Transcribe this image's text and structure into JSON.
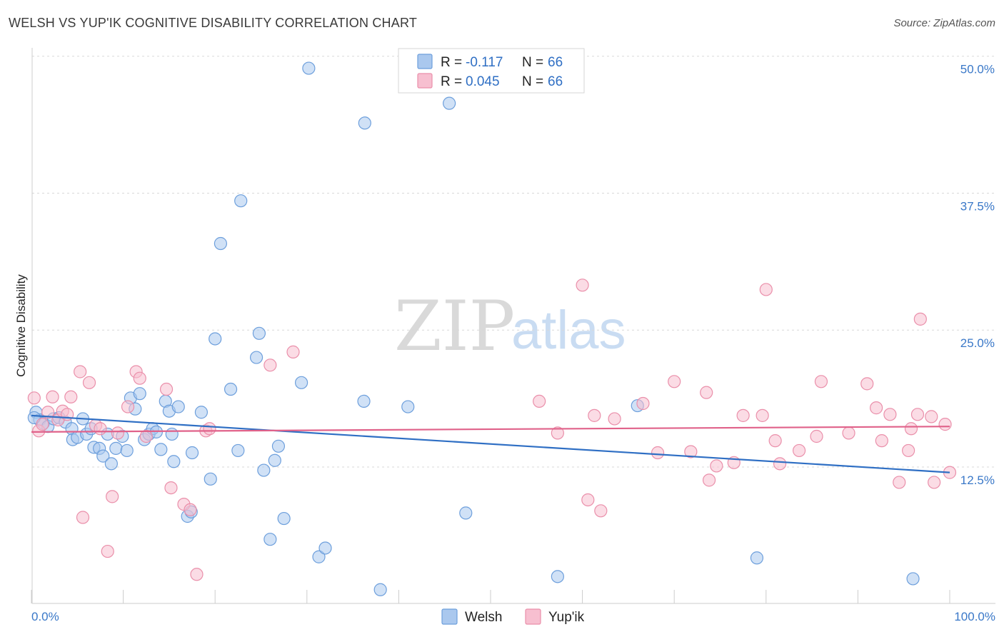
{
  "header": {
    "title": "WELSH VS YUP'IK COGNITIVE DISABILITY CORRELATION CHART",
    "source": "Source: ZipAtlas.com"
  },
  "watermark": {
    "zip": "ZIP",
    "atlas": "atlas"
  },
  "legend": {
    "welsh": {
      "r_label": "R =",
      "r_value": "-0.117",
      "n_label": "N =",
      "n_value": "66"
    },
    "yupik": {
      "r_label": "R =",
      "r_value": "0.045",
      "n_label": "N =",
      "n_value": "66"
    }
  },
  "colors": {
    "welsh_fill": "#aac8ee",
    "welsh_stroke": "#6d9fdc",
    "welsh_line": "#2f6fc4",
    "yupik_fill": "#f7bfd0",
    "yupik_stroke": "#ea8faa",
    "yupik_line": "#e0628a",
    "grid": "#d8d8d8",
    "axis_text": "#3a78c8"
  },
  "chart_data": {
    "type": "scatter",
    "xlabel": "",
    "ylabel": "Cognitive Disability",
    "xlim": [
      0,
      100
    ],
    "ylim": [
      0,
      52
    ],
    "x_tick_labels": [
      "0.0%",
      "100.0%"
    ],
    "y_ticks": [
      12.5,
      25.0,
      37.5,
      50.0
    ],
    "y_tick_labels": [
      "12.5%",
      "25.0%",
      "37.5%",
      "50.0%"
    ],
    "grid": true,
    "legend_position": "top-center",
    "series": [
      {
        "name": "Welsh",
        "trend": [
          [
            0,
            17.2
          ],
          [
            100,
            12.0
          ]
        ],
        "points": [
          [
            0.5,
            17.5
          ],
          [
            0.9,
            16.8
          ],
          [
            1.3,
            16.5
          ],
          [
            1.8,
            16.2
          ],
          [
            2.4,
            16.9
          ],
          [
            3.0,
            17.0
          ],
          [
            3.7,
            16.6
          ],
          [
            4.4,
            16.0
          ],
          [
            4.5,
            15.0
          ],
          [
            5.0,
            15.2
          ],
          [
            5.6,
            16.9
          ],
          [
            6.0,
            15.5
          ],
          [
            6.5,
            16.0
          ],
          [
            6.8,
            14.3
          ],
          [
            7.4,
            14.2
          ],
          [
            7.8,
            13.5
          ],
          [
            8.3,
            15.5
          ],
          [
            8.7,
            12.8
          ],
          [
            9.2,
            14.2
          ],
          [
            9.9,
            15.3
          ],
          [
            10.4,
            14.0
          ],
          [
            10.8,
            18.8
          ],
          [
            11.3,
            17.8
          ],
          [
            11.8,
            19.2
          ],
          [
            12.3,
            15.0
          ],
          [
            12.8,
            15.5
          ],
          [
            13.2,
            16.0
          ],
          [
            13.6,
            15.7
          ],
          [
            14.1,
            14.1
          ],
          [
            14.6,
            18.5
          ],
          [
            15.0,
            17.6
          ],
          [
            15.5,
            13.0
          ],
          [
            16.0,
            18.0
          ],
          [
            17.5,
            13.8
          ],
          [
            18.5,
            17.5
          ],
          [
            17.0,
            8.0
          ],
          [
            17.4,
            8.4
          ],
          [
            19.5,
            11.4
          ],
          [
            20.0,
            24.2
          ],
          [
            20.6,
            32.9
          ],
          [
            21.7,
            19.6
          ],
          [
            22.5,
            14.0
          ],
          [
            22.8,
            36.8
          ],
          [
            24.5,
            22.5
          ],
          [
            24.8,
            24.7
          ],
          [
            25.3,
            12.2
          ],
          [
            26.0,
            5.9
          ],
          [
            26.5,
            13.1
          ],
          [
            26.9,
            14.4
          ],
          [
            27.5,
            7.8
          ],
          [
            29.4,
            20.2
          ],
          [
            31.3,
            4.3
          ],
          [
            32.0,
            5.1
          ],
          [
            30.2,
            48.9
          ],
          [
            36.3,
            43.9
          ],
          [
            36.2,
            18.5
          ],
          [
            38.0,
            1.3
          ],
          [
            41.0,
            18.0
          ],
          [
            45.5,
            45.7
          ],
          [
            47.3,
            8.3
          ],
          [
            57.3,
            2.5
          ],
          [
            66.0,
            18.1
          ],
          [
            79.0,
            4.2
          ],
          [
            96.0,
            2.3
          ],
          [
            15.3,
            15.5
          ],
          [
            0.3,
            17.0
          ]
        ]
      },
      {
        "name": "Yup'ik",
        "trend": [
          [
            0,
            15.7
          ],
          [
            100,
            16.2
          ]
        ],
        "points": [
          [
            0.3,
            18.8
          ],
          [
            0.8,
            15.8
          ],
          [
            1.2,
            16.4
          ],
          [
            1.8,
            17.5
          ],
          [
            2.3,
            18.9
          ],
          [
            2.9,
            16.8
          ],
          [
            3.4,
            17.6
          ],
          [
            3.9,
            17.3
          ],
          [
            4.3,
            18.9
          ],
          [
            5.3,
            21.2
          ],
          [
            5.6,
            7.9
          ],
          [
            6.3,
            20.2
          ],
          [
            7.0,
            16.3
          ],
          [
            7.5,
            16.0
          ],
          [
            8.3,
            4.8
          ],
          [
            8.8,
            9.8
          ],
          [
            9.4,
            15.6
          ],
          [
            10.5,
            18.0
          ],
          [
            11.4,
            21.2
          ],
          [
            11.8,
            20.6
          ],
          [
            12.5,
            15.3
          ],
          [
            14.7,
            19.6
          ],
          [
            15.2,
            10.6
          ],
          [
            16.6,
            9.1
          ],
          [
            17.3,
            8.6
          ],
          [
            18.0,
            2.7
          ],
          [
            19.0,
            15.8
          ],
          [
            19.4,
            16.0
          ],
          [
            26.0,
            21.8
          ],
          [
            28.5,
            23.0
          ],
          [
            55.3,
            18.5
          ],
          [
            57.3,
            15.6
          ],
          [
            60.0,
            29.1
          ],
          [
            60.6,
            9.5
          ],
          [
            61.3,
            17.2
          ],
          [
            62.0,
            8.5
          ],
          [
            63.5,
            16.9
          ],
          [
            66.6,
            18.3
          ],
          [
            68.2,
            13.8
          ],
          [
            70.0,
            20.3
          ],
          [
            71.8,
            13.9
          ],
          [
            73.5,
            19.3
          ],
          [
            73.8,
            11.3
          ],
          [
            74.6,
            12.6
          ],
          [
            76.5,
            12.9
          ],
          [
            77.5,
            17.2
          ],
          [
            79.6,
            17.2
          ],
          [
            80.0,
            28.7
          ],
          [
            81.0,
            14.9
          ],
          [
            81.5,
            12.8
          ],
          [
            83.6,
            14.0
          ],
          [
            85.5,
            15.3
          ],
          [
            86.0,
            20.3
          ],
          [
            89.0,
            15.6
          ],
          [
            91.0,
            20.1
          ],
          [
            92.0,
            17.9
          ],
          [
            92.6,
            14.9
          ],
          [
            93.5,
            17.3
          ],
          [
            94.5,
            11.1
          ],
          [
            95.5,
            14.0
          ],
          [
            95.8,
            16.0
          ],
          [
            96.5,
            17.3
          ],
          [
            96.8,
            26.0
          ],
          [
            98.0,
            17.1
          ],
          [
            98.3,
            11.1
          ],
          [
            99.5,
            16.4
          ]
        ]
      }
    ],
    "extra_points": {
      "yupik_far_right": [
        100,
        12.0
      ]
    }
  }
}
